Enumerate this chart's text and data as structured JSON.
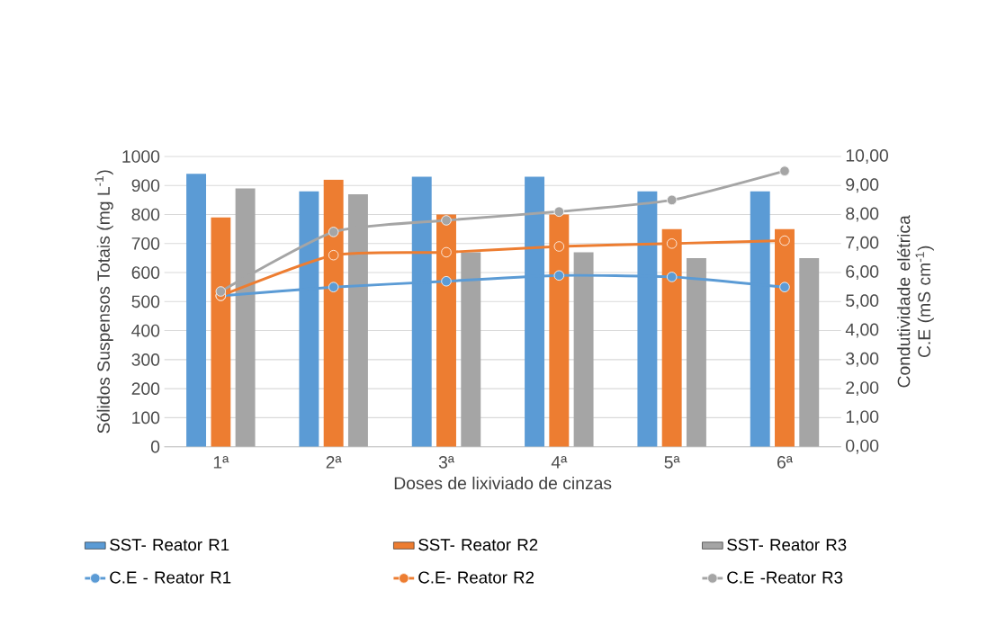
{
  "chart_data": {
    "type": "bar",
    "xlabel": "Doses de lixiviado de cinzas",
    "ylabel": "Sólidos Suspensos Totais (mg L$^{-1}$)",
    "y2label": "Condutividade elétrica C.E (mS cm$^{-1}$)",
    "categories": [
      "1ª",
      "2ª",
      "3ª",
      "4ª",
      "5ª",
      "6ª"
    ],
    "series": [
      {
        "name": "SST- Reator R1",
        "color": "#5b9bd5",
        "values": [
          940,
          880,
          930,
          930,
          880,
          880
        ]
      },
      {
        "name": "SST- Reator R2",
        "color": "#ed7d31",
        "values": [
          790,
          920,
          800,
          800,
          750,
          750
        ]
      },
      {
        "name": "SST- Reator R3",
        "color": "#a5a5a5",
        "values": [
          890,
          870,
          670,
          670,
          650,
          650
        ]
      },
      {
        "name": "C.E - Reator R1",
        "type": "line",
        "axis": "y2",
        "color": "#5b9bd5",
        "values": [
          5.2,
          5.5,
          5.7,
          5.9,
          5.85,
          5.5
        ]
      },
      {
        "name": "C.E- Reator R2",
        "type": "line",
        "axis": "y2",
        "color": "#ed7d31",
        "values": [
          5.2,
          6.6,
          6.7,
          6.9,
          7.0,
          7.1
        ]
      },
      {
        "name": "C.E -Reator R3",
        "type": "line",
        "axis": "y2",
        "color": "#a5a5a5",
        "values": [
          5.35,
          7.4,
          7.8,
          8.1,
          8.5,
          9.5
        ]
      }
    ],
    "ylim": [
      0,
      1000
    ],
    "yticks": [
      0,
      100,
      200,
      300,
      400,
      500,
      600,
      700,
      800,
      900,
      1000
    ],
    "y2lim": [
      0,
      10
    ],
    "y2ticks": [
      {
        "value": 0,
        "label": "0,00"
      },
      {
        "value": 1,
        "label": "1,00"
      },
      {
        "value": 2,
        "label": "2,00"
      },
      {
        "value": 3,
        "label": "3,00"
      },
      {
        "value": 4,
        "label": "4,00"
      },
      {
        "value": 5,
        "label": "5,00"
      },
      {
        "value": 6,
        "label": "6,00"
      },
      {
        "value": 7,
        "label": "7,00"
      },
      {
        "value": 8,
        "label": "8,00"
      },
      {
        "value": 9,
        "label": "9,00"
      },
      {
        "value": 10,
        "label": "10,00"
      }
    ],
    "grid": "y",
    "legend": "bottom",
    "marker": "circle"
  }
}
